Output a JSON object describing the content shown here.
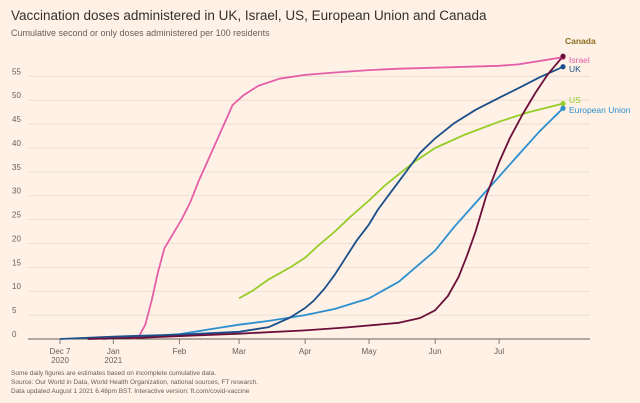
{
  "title": "Vaccination doses administered in UK, Israel, US, European Union and Canada",
  "subtitle": "Cumulative second or only doses administered per 100 residents",
  "notes": [
    "Some daily figures are estimates based on incomplete cumulative data.",
    "Source: Our World in Data, World Health Organization, national sources, FT research.",
    "Data updated August 1 2021 6.48pm BST. Interactive version: ft.com/covid-vaccine"
  ],
  "chart_data": {
    "type": "line",
    "title": "Vaccination doses administered in UK, Israel, US, European Union and Canada",
    "subtitle": "Cumulative second or only doses administered per 100 residents",
    "x_unit": "date (2020-12-07 to 2021-07-31)",
    "x_range": [
      "2020-12-07",
      "2021-07-31"
    ],
    "ylim": [
      0,
      58
    ],
    "yticks": [
      0,
      5,
      10,
      15,
      20,
      25,
      30,
      35,
      40,
      45,
      50,
      55
    ],
    "xticks": [
      {
        "date": "2020-12-07",
        "label": "Dec 7",
        "sub": "2020"
      },
      {
        "date": "2021-01-01",
        "label": "Jan",
        "sub": "2021"
      },
      {
        "date": "2021-02-01",
        "label": "Feb",
        "sub": ""
      },
      {
        "date": "2021-03-01",
        "label": "Mar",
        "sub": ""
      },
      {
        "date": "2021-04-01",
        "label": "Apr",
        "sub": ""
      },
      {
        "date": "2021-05-01",
        "label": "May",
        "sub": ""
      },
      {
        "date": "2021-06-01",
        "label": "Jun",
        "sub": ""
      },
      {
        "date": "2021-07-01",
        "label": "Jul",
        "sub": ""
      }
    ],
    "grid": true,
    "legend": "direct labels at line ends (right)",
    "series": [
      {
        "name": "Israel",
        "color": "#e45ea8",
        "points": [
          [
            "2021-01-10",
            0
          ],
          [
            "2021-01-13",
            0.5
          ],
          [
            "2021-01-16",
            3
          ],
          [
            "2021-01-19",
            8
          ],
          [
            "2021-01-22",
            14
          ],
          [
            "2021-01-25",
            19
          ],
          [
            "2021-01-29",
            22
          ],
          [
            "2021-02-02",
            25
          ],
          [
            "2021-02-06",
            28.5
          ],
          [
            "2021-02-10",
            33
          ],
          [
            "2021-02-14",
            37
          ],
          [
            "2021-02-18",
            41
          ],
          [
            "2021-02-22",
            45
          ],
          [
            "2021-02-26",
            49
          ],
          [
            "2021-03-03",
            51
          ],
          [
            "2021-03-10",
            53
          ],
          [
            "2021-03-20",
            54.5
          ],
          [
            "2021-04-01",
            55.3
          ],
          [
            "2021-04-15",
            55.8
          ],
          [
            "2021-05-01",
            56.3
          ],
          [
            "2021-05-15",
            56.6
          ],
          [
            "2021-06-01",
            56.8
          ],
          [
            "2021-06-15",
            57
          ],
          [
            "2021-07-01",
            57.2
          ],
          [
            "2021-07-10",
            57.5
          ],
          [
            "2021-07-20",
            58.2
          ],
          [
            "2021-07-31",
            59
          ]
        ]
      },
      {
        "name": "UK",
        "color": "#1a4f8a",
        "points": [
          [
            "2020-12-07",
            0
          ],
          [
            "2021-01-01",
            0.5
          ],
          [
            "2021-02-01",
            0.9
          ],
          [
            "2021-03-01",
            1.5
          ],
          [
            "2021-03-15",
            2.5
          ],
          [
            "2021-03-25",
            4.5
          ],
          [
            "2021-04-01",
            6.5
          ],
          [
            "2021-04-05",
            8
          ],
          [
            "2021-04-10",
            10.5
          ],
          [
            "2021-04-15",
            13.5
          ],
          [
            "2021-04-20",
            17
          ],
          [
            "2021-04-25",
            20.5
          ],
          [
            "2021-05-01",
            24
          ],
          [
            "2021-05-05",
            27
          ],
          [
            "2021-05-10",
            30
          ],
          [
            "2021-05-15",
            33
          ],
          [
            "2021-05-20",
            36
          ],
          [
            "2021-05-25",
            39
          ],
          [
            "2021-06-01",
            42
          ],
          [
            "2021-06-10",
            45.2
          ],
          [
            "2021-06-20",
            48
          ],
          [
            "2021-07-01",
            50.5
          ],
          [
            "2021-07-10",
            52.5
          ],
          [
            "2021-07-20",
            54.8
          ],
          [
            "2021-07-31",
            57
          ]
        ]
      },
      {
        "name": "US",
        "color": "#96cc28",
        "points": [
          [
            "2021-03-01",
            8.5
          ],
          [
            "2021-03-07",
            10
          ],
          [
            "2021-03-15",
            12.5
          ],
          [
            "2021-03-25",
            15
          ],
          [
            "2021-04-01",
            17
          ],
          [
            "2021-04-07",
            19.5
          ],
          [
            "2021-04-15",
            22.5
          ],
          [
            "2021-04-22",
            25.5
          ],
          [
            "2021-05-01",
            29
          ],
          [
            "2021-05-08",
            32
          ],
          [
            "2021-05-15",
            34.5
          ],
          [
            "2021-05-22",
            37
          ],
          [
            "2021-06-01",
            40
          ],
          [
            "2021-06-15",
            42.8
          ],
          [
            "2021-07-01",
            45.5
          ],
          [
            "2021-07-15",
            47.5
          ],
          [
            "2021-07-31",
            49.3
          ]
        ]
      },
      {
        "name": "European Union",
        "color": "#2e8fcf",
        "points": [
          [
            "2020-12-27",
            0
          ],
          [
            "2021-01-15",
            0.5
          ],
          [
            "2021-02-01",
            1
          ],
          [
            "2021-02-15",
            2
          ],
          [
            "2021-03-01",
            3
          ],
          [
            "2021-03-15",
            3.8
          ],
          [
            "2021-04-01",
            5
          ],
          [
            "2021-04-15",
            6.3
          ],
          [
            "2021-05-01",
            8.5
          ],
          [
            "2021-05-15",
            12
          ],
          [
            "2021-06-01",
            18.5
          ],
          [
            "2021-06-10",
            23.5
          ],
          [
            "2021-06-20",
            28.5
          ],
          [
            "2021-07-01",
            34
          ],
          [
            "2021-07-10",
            38.5
          ],
          [
            "2021-07-20",
            43.5
          ],
          [
            "2021-07-31",
            48.3
          ]
        ]
      },
      {
        "name": "Canada",
        "color": "#6b0e3a",
        "points": [
          [
            "2020-12-20",
            0
          ],
          [
            "2021-01-15",
            0.3
          ],
          [
            "2021-02-01",
            0.6
          ],
          [
            "2021-03-01",
            1.1
          ],
          [
            "2021-04-01",
            1.8
          ],
          [
            "2021-04-20",
            2.4
          ],
          [
            "2021-05-15",
            3.4
          ],
          [
            "2021-05-25",
            4.4
          ],
          [
            "2021-06-01",
            6
          ],
          [
            "2021-06-07",
            9
          ],
          [
            "2021-06-12",
            13
          ],
          [
            "2021-06-16",
            17.5
          ],
          [
            "2021-06-20",
            22.5
          ],
          [
            "2021-06-25",
            30
          ],
          [
            "2021-07-01",
            37
          ],
          [
            "2021-07-06",
            42
          ],
          [
            "2021-07-12",
            47
          ],
          [
            "2021-07-18",
            51.5
          ],
          [
            "2021-07-24",
            55.5
          ],
          [
            "2021-07-31",
            59.2
          ]
        ]
      }
    ]
  }
}
